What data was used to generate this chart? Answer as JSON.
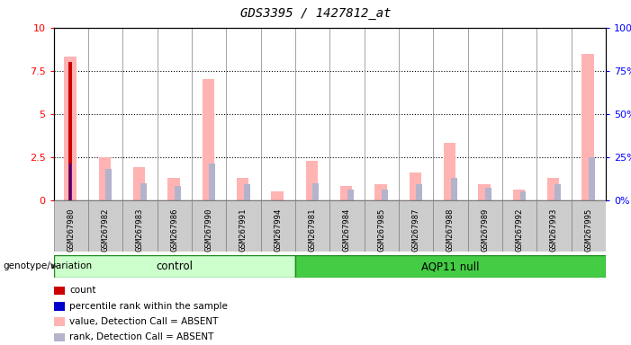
{
  "title": "GDS3395 / 1427812_at",
  "samples": [
    "GSM267980",
    "GSM267982",
    "GSM267983",
    "GSM267986",
    "GSM267990",
    "GSM267991",
    "GSM267994",
    "GSM267981",
    "GSM267984",
    "GSM267985",
    "GSM267987",
    "GSM267988",
    "GSM267989",
    "GSM267992",
    "GSM267993",
    "GSM267995"
  ],
  "count_values": [
    8.0,
    0,
    0,
    0,
    0,
    0,
    0,
    0,
    0,
    0,
    0,
    0,
    0,
    0,
    0,
    0
  ],
  "percentile_values": [
    2.1,
    0,
    0,
    0,
    0,
    0,
    0,
    0,
    0,
    0,
    0,
    0,
    0,
    0,
    0,
    0
  ],
  "value_absent": [
    8.3,
    2.5,
    1.9,
    1.3,
    7.0,
    1.3,
    0.5,
    2.3,
    0.8,
    0.9,
    1.6,
    3.3,
    0.9,
    0.6,
    1.3,
    8.5
  ],
  "rank_absent": [
    0,
    1.8,
    1.0,
    0.8,
    2.1,
    0.9,
    0,
    1.0,
    0.6,
    0.6,
    0.9,
    1.3,
    0.7,
    0.5,
    0.9,
    2.5
  ],
  "control_count": 7,
  "aqp11_count": 9,
  "ylim_left": [
    0,
    10
  ],
  "ylim_right": [
    0,
    100
  ],
  "yticks_left": [
    0,
    2.5,
    5,
    7.5,
    10
  ],
  "yticks_right": [
    0,
    25,
    50,
    75,
    100
  ],
  "colors": {
    "count": "#cc0000",
    "percentile": "#0000cc",
    "value_absent": "#ffb3b3",
    "rank_absent": "#b3b3cc",
    "control_bg": "#ccffcc",
    "aqp11_bg": "#44cc44",
    "sample_bg": "#cccccc",
    "white": "#ffffff"
  },
  "legend_items": [
    {
      "label": "count",
      "color": "#cc0000"
    },
    {
      "label": "percentile rank within the sample",
      "color": "#0000cc"
    },
    {
      "label": "value, Detection Call = ABSENT",
      "color": "#ffb3b3"
    },
    {
      "label": "rank, Detection Call = ABSENT",
      "color": "#b3b3cc"
    }
  ],
  "genotype_label": "genotype/variation"
}
